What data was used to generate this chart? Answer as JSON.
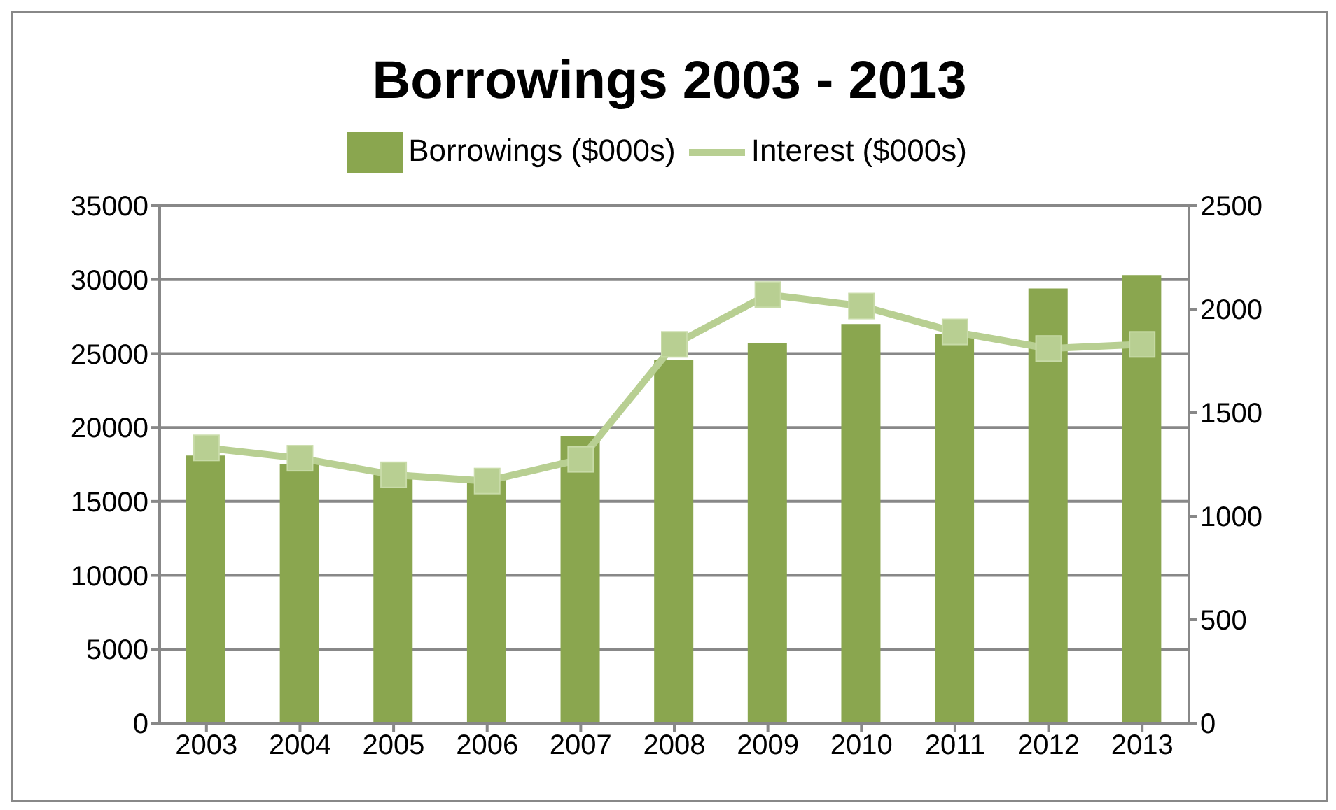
{
  "chart_data": {
    "type": "bar",
    "title": "Borrowings 2003 - 2013",
    "categories": [
      "2003",
      "2004",
      "2005",
      "2006",
      "2007",
      "2008",
      "2009",
      "2010",
      "2011",
      "2012",
      "2013"
    ],
    "series": [
      {
        "name": "Borrowings ($000s)",
        "color": "#8aa64f",
        "values": [
          18100,
          17500,
          16800,
          16500,
          19400,
          24600,
          25700,
          27000,
          26300,
          29400,
          30300
        ]
      },
      {
        "name": "Interest ($000s)",
        "type": "line",
        "axis": "y2",
        "color": "#b8cf92",
        "marker": "square",
        "values": [
          1330,
          1280,
          1200,
          1170,
          1275,
          1830,
          2070,
          2015,
          1890,
          1810,
          1830
        ]
      }
    ],
    "ylim": [
      0,
      35000
    ],
    "yticks": [
      0,
      5000,
      10000,
      15000,
      20000,
      25000,
      30000,
      35000
    ],
    "y2lim": [
      0,
      2500
    ],
    "y2ticks": [
      0,
      500,
      1000,
      1500,
      2000,
      2500
    ],
    "grid": "y",
    "legend": "top"
  }
}
